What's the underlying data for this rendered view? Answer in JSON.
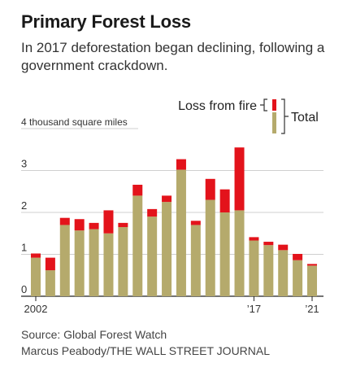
{
  "title": "Primary Forest Loss",
  "subtitle": "In 2017 deforestation began declining, following a government crackdown.",
  "source": "Source: Global Forest Watch",
  "credit": "Marcus Peabody/THE WALL STREET JOURNAL",
  "colors": {
    "fire": "#e3131b",
    "total": "#b5aa6c",
    "grid": "#cfcfcf",
    "axis": "#222222"
  },
  "chart_data": {
    "type": "bar",
    "stacked": true,
    "categories": [
      "2002",
      "2003",
      "2004",
      "2005",
      "2006",
      "2007",
      "2008",
      "2009",
      "2010",
      "2011",
      "2012",
      "2013",
      "2014",
      "2015",
      "2016",
      "2017",
      "2018",
      "2019",
      "2020",
      "2021"
    ],
    "x_tick_labels": [
      {
        "index": 0,
        "label": "2002"
      },
      {
        "index": 15,
        "label": "’17"
      },
      {
        "index": 19,
        "label": "’21"
      }
    ],
    "y_tick_labels": [
      "0",
      "1",
      "2",
      "3",
      "4 thousand square miles"
    ],
    "ylim": [
      0,
      4
    ],
    "legend": {
      "fire": "Loss from fire",
      "total": "Total"
    },
    "series": [
      {
        "name": "Total",
        "values": [
          0.92,
          0.62,
          1.7,
          1.57,
          1.6,
          1.5,
          1.65,
          2.4,
          1.9,
          2.25,
          3.02,
          1.7,
          2.3,
          2.0,
          2.05,
          1.33,
          1.22,
          1.1,
          0.86,
          0.73
        ]
      },
      {
        "name": "Loss from fire",
        "values": [
          0.1,
          0.3,
          0.17,
          0.27,
          0.15,
          0.55,
          0.1,
          0.26,
          0.18,
          0.15,
          0.25,
          0.1,
          0.5,
          0.55,
          1.5,
          0.08,
          0.08,
          0.13,
          0.15,
          0.04
        ]
      }
    ]
  }
}
